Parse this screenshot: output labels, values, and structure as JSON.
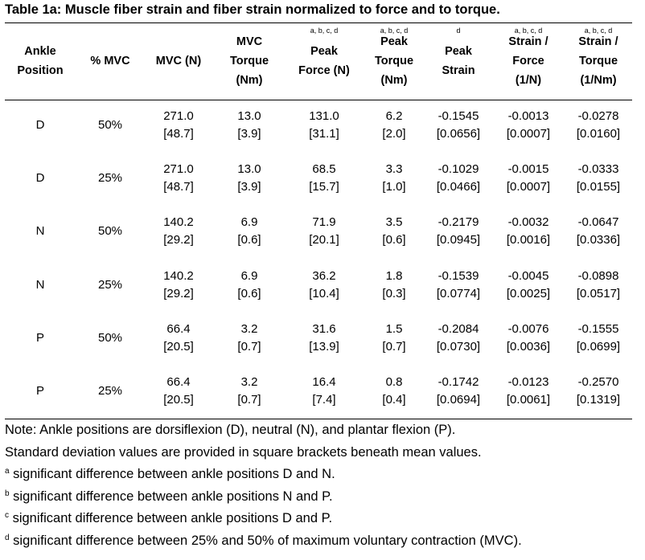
{
  "title": "Table 1a: Muscle fiber strain and fiber strain normalized to force and to torque.",
  "columns": [
    {
      "sup": "",
      "lines": [
        "Ankle",
        "Position"
      ]
    },
    {
      "sup": "",
      "lines": [
        "% MVC"
      ]
    },
    {
      "sup": "",
      "lines": [
        "MVC (N)"
      ]
    },
    {
      "sup": "",
      "lines": [
        "MVC",
        "Torque",
        "(Nm)"
      ]
    },
    {
      "sup": "a, b, c, d",
      "lines": [
        "Peak",
        "Force (N)"
      ]
    },
    {
      "sup": "a, b, c, d",
      "lines": [
        "Peak",
        "Torque",
        "(Nm)"
      ]
    },
    {
      "sup": "d",
      "lines": [
        "Peak",
        "Strain"
      ]
    },
    {
      "sup": "a, b, c, d",
      "lines": [
        "Strain /",
        "Force",
        "(1/N)"
      ]
    },
    {
      "sup": "a, b, c, d",
      "lines": [
        "Strain /",
        "Torque",
        "(1/Nm)"
      ]
    }
  ],
  "rows": [
    {
      "ankle": "D",
      "mvc_pct": "50%",
      "values": [
        [
          "271.0",
          "[48.7]"
        ],
        [
          "13.0",
          "[3.9]"
        ],
        [
          "131.0",
          "[31.1]"
        ],
        [
          "6.2",
          "[2.0]"
        ],
        [
          "-0.1545",
          "[0.0656]"
        ],
        [
          "-0.0013",
          "[0.0007]"
        ],
        [
          "-0.0278",
          "[0.0160]"
        ]
      ]
    },
    {
      "ankle": "D",
      "mvc_pct": "25%",
      "values": [
        [
          "271.0",
          "[48.7]"
        ],
        [
          "13.0",
          "[3.9]"
        ],
        [
          "68.5",
          "[15.7]"
        ],
        [
          "3.3",
          "[1.0]"
        ],
        [
          "-0.1029",
          "[0.0466]"
        ],
        [
          "-0.0015",
          "[0.0007]"
        ],
        [
          "-0.0333",
          "[0.0155]"
        ]
      ]
    },
    {
      "ankle": "N",
      "mvc_pct": "50%",
      "values": [
        [
          "140.2",
          "[29.2]"
        ],
        [
          "6.9",
          "[0.6]"
        ],
        [
          "71.9",
          "[20.1]"
        ],
        [
          "3.5",
          "[0.6]"
        ],
        [
          "-0.2179",
          "[0.0945]"
        ],
        [
          "-0.0032",
          "[0.0016]"
        ],
        [
          "-0.0647",
          "[0.0336]"
        ]
      ]
    },
    {
      "ankle": "N",
      "mvc_pct": "25%",
      "values": [
        [
          "140.2",
          "[29.2]"
        ],
        [
          "6.9",
          "[0.6]"
        ],
        [
          "36.2",
          "[10.4]"
        ],
        [
          "1.8",
          "[0.3]"
        ],
        [
          "-0.1539",
          "[0.0774]"
        ],
        [
          "-0.0045",
          "[0.0025]"
        ],
        [
          "-0.0898",
          "[0.0517]"
        ]
      ]
    },
    {
      "ankle": "P",
      "mvc_pct": "50%",
      "values": [
        [
          "66.4",
          "[20.5]"
        ],
        [
          "3.2",
          "[0.7]"
        ],
        [
          "31.6",
          "[13.9]"
        ],
        [
          "1.5",
          "[0.7]"
        ],
        [
          "-0.2084",
          "[0.0730]"
        ],
        [
          "-0.0076",
          "[0.0036]"
        ],
        [
          "-0.1555",
          "[0.0699]"
        ]
      ]
    },
    {
      "ankle": "P",
      "mvc_pct": "25%",
      "values": [
        [
          "66.4",
          "[20.5]"
        ],
        [
          "3.2",
          "[0.7]"
        ],
        [
          "16.4",
          "[7.4]"
        ],
        [
          "0.8",
          "[0.4]"
        ],
        [
          "-0.1742",
          "[0.0694]"
        ],
        [
          "-0.0123",
          "[0.0061]"
        ],
        [
          "-0.2570",
          "[0.1319]"
        ]
      ]
    }
  ],
  "notes": [
    {
      "sup": "",
      "text": "Note: Ankle positions are dorsiflexion (D), neutral (N), and plantar flexion (P)."
    },
    {
      "sup": "",
      "text": "Standard deviation values are provided in square brackets beneath mean values."
    },
    {
      "sup": "a",
      "text": " significant difference between ankle positions D and N."
    },
    {
      "sup": "b",
      "text": " significant difference between ankle positions N and P."
    },
    {
      "sup": "c",
      "text": " significant difference between ankle positions D and P."
    },
    {
      "sup": "d",
      "text": " significant difference between 25% and 50% of maximum voluntary contraction (MVC)."
    }
  ]
}
